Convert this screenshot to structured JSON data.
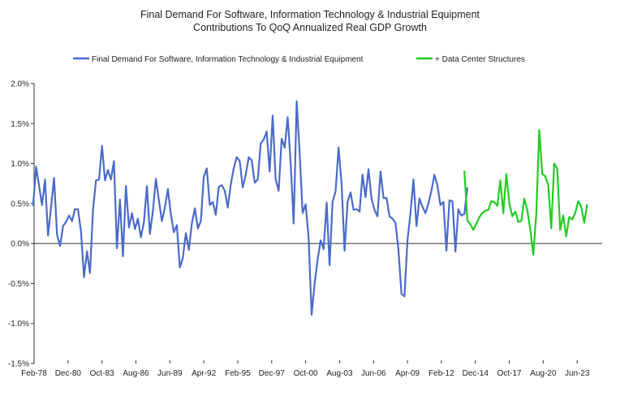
{
  "chart_data": {
    "type": "line",
    "title_lines": [
      "Final Demand For Software, Information Technology & Industrial Equipment",
      "Contributions To QoQ Annualized Real GDP Growth"
    ],
    "xlabel": "",
    "ylabel": "",
    "ylim": [
      -1.5,
      2.0
    ],
    "y_ticks": [
      2.0,
      1.5,
      1.0,
      0.5,
      0.0,
      -0.5,
      -1.0,
      -1.5
    ],
    "y_tick_labels": [
      "2.0%",
      "1.5%",
      "1.0%",
      "0.5%",
      "0.0%",
      "-0.5%",
      "-1.0%",
      "-1.5%"
    ],
    "x_range": [
      1978.083,
      2025.5
    ],
    "x_tick_labels": [
      "Feb-78",
      "Dec-80",
      "Oct-83",
      "Aug-86",
      "Jun-89",
      "Apr-92",
      "Feb-95",
      "Dec-97",
      "Oct-00",
      "Aug-03",
      "Jun-06",
      "Apr-09",
      "Feb-12",
      "Dec-14",
      "Oct-17",
      "Aug-20",
      "Jun-23"
    ],
    "x_tick_values": [
      1978.083,
      1980.917,
      1983.75,
      1986.583,
      1989.417,
      1992.25,
      1995.083,
      1997.917,
      2000.75,
      2003.583,
      2006.417,
      2009.25,
      2012.083,
      2014.917,
      2017.75,
      2020.583,
      2023.417
    ],
    "legend_position": "top-center",
    "grid": false,
    "colors": {
      "series1": "#4a6bc8",
      "series2": "#22cc22",
      "axis": "#333333"
    },
    "series": [
      {
        "name": "Final Demand For Software, Information Technology & Industrial Equipment",
        "start": 1978.0,
        "step": 0.25,
        "values": [
          0.47,
          0.96,
          0.72,
          0.48,
          0.8,
          0.1,
          0.45,
          0.82,
          0.11,
          -0.03,
          0.22,
          0.27,
          0.35,
          0.28,
          0.43,
          0.43,
          0.15,
          -0.42,
          -0.1,
          -0.37,
          0.42,
          0.79,
          0.8,
          1.22,
          0.79,
          0.92,
          0.8,
          1.03,
          -0.06,
          0.55,
          -0.16,
          0.72,
          0.2,
          0.38,
          0.18,
          0.31,
          0.08,
          0.26,
          0.72,
          0.12,
          0.4,
          0.81,
          0.54,
          0.28,
          0.45,
          0.68,
          0.37,
          0.14,
          0.23,
          -0.3,
          -0.18,
          0.13,
          -0.08,
          0.25,
          0.44,
          0.19,
          0.28,
          0.83,
          0.94,
          0.48,
          0.52,
          0.36,
          0.71,
          0.73,
          0.66,
          0.45,
          0.74,
          0.94,
          1.08,
          1.03,
          0.7,
          0.86,
          1.08,
          1.04,
          0.76,
          0.8,
          1.25,
          1.3,
          1.4,
          0.9,
          1.6,
          0.8,
          0.66,
          1.31,
          1.2,
          1.58,
          1.0,
          0.25,
          1.78,
          1.14,
          0.38,
          0.49,
          0.07,
          -0.89,
          -0.5,
          -0.2,
          0.04,
          -0.07,
          0.51,
          -0.27,
          0.52,
          0.65,
          1.2,
          0.75,
          -0.09,
          0.52,
          0.64,
          0.42,
          0.43,
          0.4,
          0.86,
          0.58,
          0.93,
          0.56,
          0.42,
          0.34,
          0.9,
          0.57,
          0.57,
          0.34,
          0.31,
          0.26,
          -0.08,
          -0.63,
          -0.66,
          0.04,
          0.38,
          0.8,
          0.22,
          0.56,
          0.46,
          0.38,
          0.5,
          0.66,
          0.86,
          0.73,
          0.48,
          0.52,
          -0.09,
          0.54,
          0.53,
          -0.1,
          0.43,
          0.35,
          0.37,
          0.7
        ]
      },
      {
        "name": "+ Data Center Structures",
        "start": 2014.0,
        "step": 0.25,
        "values": [
          0.91,
          0.29,
          0.24,
          0.17,
          0.25,
          0.33,
          0.38,
          0.41,
          0.42,
          0.53,
          0.52,
          0.47,
          0.79,
          0.38,
          0.87,
          0.51,
          0.34,
          0.4,
          0.27,
          0.28,
          0.56,
          0.42,
          0.18,
          -0.14,
          0.36,
          1.42,
          0.87,
          0.84,
          0.73,
          0.19,
          1.0,
          0.94,
          0.17,
          0.35,
          0.09,
          0.33,
          0.3,
          0.38,
          0.53,
          0.46,
          0.26,
          0.49
        ]
      }
    ]
  }
}
